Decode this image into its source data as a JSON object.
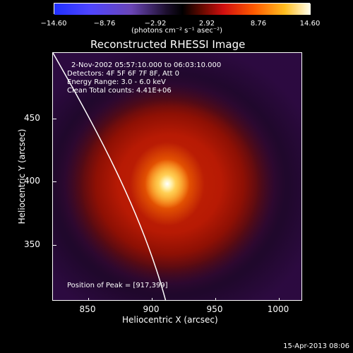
{
  "colorbar": {
    "ticks": [
      "−14.60",
      "−8.76",
      "−2.92",
      "2.92",
      "8.76",
      "14.60"
    ],
    "unit": "(photons cm⁻² s⁻¹ asec⁻²)"
  },
  "title": "Reconstructed RHESSI Image",
  "metadata": {
    "time": "2-Nov-2002 05:57:10.000 to 06:03:10.000",
    "detectors": "Detectors: 4F 5F 6F 7F 8F, Att 0",
    "energy": "Energy Range: 3.0 - 6.0 keV",
    "clean": "Clean    Total counts: 4.41E+06",
    "peak": "Position of Peak = [917,399]"
  },
  "axes": {
    "x_ticks": [
      "850",
      "900",
      "950",
      "1000"
    ],
    "y_ticks": [
      "450",
      "400",
      "350"
    ],
    "x_label": "Heliocentric X (arcsec)",
    "y_label": "Heliocentric Y (arcsec)"
  },
  "timestamp": "15-Apr-2013 08:06"
}
